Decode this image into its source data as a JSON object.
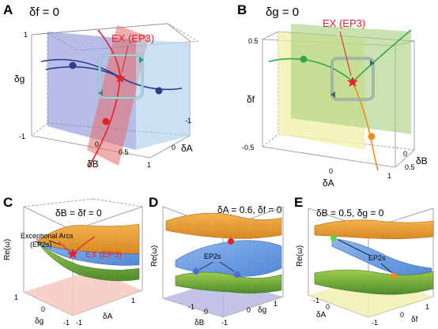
{
  "panels": {
    "A": {
      "letter": "A",
      "title": "δf = 0",
      "annotation": "EX (EP3)",
      "y_axis": "δg",
      "x_axis": "δB",
      "z_axis": "δA",
      "ticks": {
        "y_top": "1",
        "y_bottom": "-1",
        "x_0": "0",
        "x_05": "0.5",
        "x_1": "1",
        "z_m1": "-1",
        "z_0": "0"
      },
      "colors": {
        "plane1": "#7b86d4",
        "plane2": "#e86a6a",
        "plane3": "#a9cdea",
        "curve_blue": "#2a3d8f",
        "curve_red": "#e8202a"
      }
    },
    "B": {
      "letter": "B",
      "title": "δg = 0",
      "annotation": "EX (EP3)",
      "y_axis": "δf",
      "x_axis": "δA",
      "z_axis": "δB",
      "ticks": {
        "y_top": "0.5",
        "y_bottom": "-0.5",
        "x_0": "0",
        "x_1": "1",
        "z_0": "0",
        "z_05": "0.5"
      },
      "colors": {
        "plane1": "#f2f0a8",
        "plane2": "#a7cf7a",
        "curve_green": "#2fa84f",
        "curve_orange": "#f08a1c"
      }
    },
    "C": {
      "letter": "C",
      "title": "δB = δf = 0",
      "annotation": "EX (EP3)",
      "arcs_label_1": "Exceptional Arcs",
      "arcs_label_2": "(EP2s)",
      "y_axis": "Re(ω)",
      "x_axis": "δg",
      "z_axis": "δA",
      "ticks": {
        "x_m1": "-1",
        "x_0": "0",
        "x_1": "1",
        "z_m1": "-1",
        "z_1": "1"
      }
    },
    "D": {
      "letter": "D",
      "title": "δA = 0.6, δf = 0",
      "annotation": "EP2s",
      "y_axis": "Re(ω)",
      "x_axis": "δB",
      "z_axis": "δg",
      "ticks": {
        "x_m1": "-1",
        "x_0": "0",
        "x_1": "1",
        "z_m1": "-1",
        "z_0": "0",
        "z_1": "1"
      }
    },
    "E": {
      "letter": "E",
      "title": "δB = 0.5, δg = 0",
      "annotation": "EP2s",
      "y_axis": "Re(ω)",
      "x_axis": "δA",
      "z_axis": "δf",
      "ticks": {
        "x_m1": "-1",
        "x_0": "0",
        "z_m1": "-1",
        "z_0": "0",
        "z_1": "1"
      }
    }
  }
}
